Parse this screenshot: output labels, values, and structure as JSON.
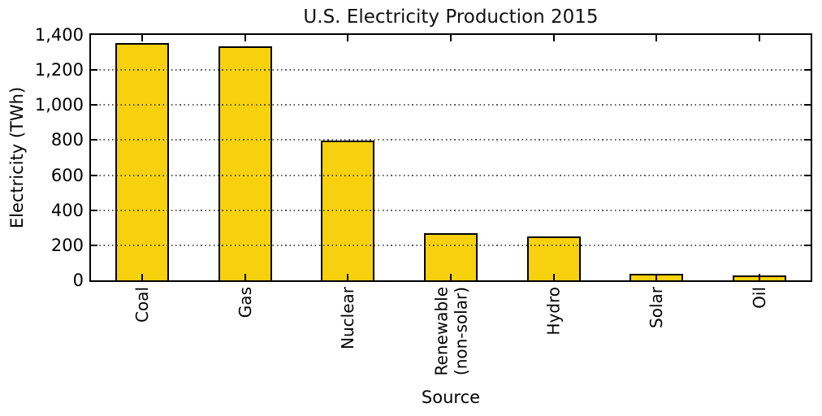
{
  "chart_data": {
    "type": "bar",
    "title": "U.S. Electricity Production 2015",
    "xlabel": "Source",
    "ylabel": "Electricity (TWh)",
    "categories": [
      "Coal",
      "Gas",
      "Nuclear",
      "Renewable\n(non-solar)",
      "Hydro",
      "Solar",
      "Oil"
    ],
    "values": [
      1355,
      1335,
      797,
      270,
      249,
      39,
      28
    ],
    "ylim": [
      0,
      1400
    ],
    "yticks": [
      0,
      200,
      400,
      600,
      800,
      1000,
      1200,
      1400
    ],
    "ytick_labels": [
      "0",
      "200",
      "400",
      "600",
      "800",
      "1,000",
      "1,200",
      "1,400"
    ],
    "grid": "horizontal-dotted-drawn-over-bars",
    "ticks_direction": "in-all-four-sides",
    "legend_position": "none",
    "bar_color": "#F7D10D",
    "bar_border_color": "#000000",
    "grid_color": "#3c3c3c",
    "axis_color": "#000000",
    "background_color": "#ffffff"
  }
}
